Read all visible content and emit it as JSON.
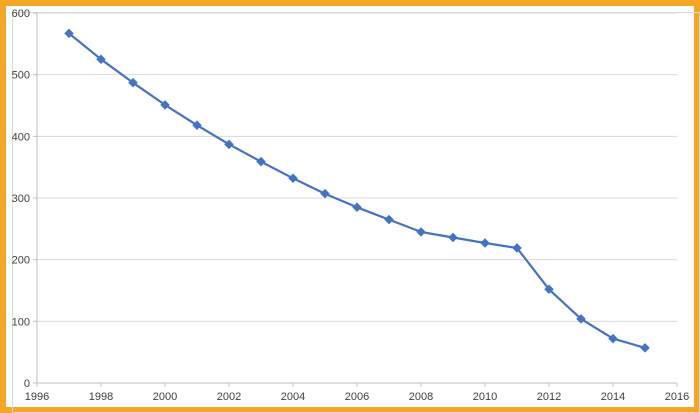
{
  "page": {
    "frame_color": "#f5a623"
  },
  "chart_data": {
    "type": "line",
    "title": "",
    "xlabel": "",
    "ylabel": "",
    "xlim": [
      1996,
      2016
    ],
    "ylim": [
      0,
      600
    ],
    "x_ticks": [
      1996,
      1998,
      2000,
      2002,
      2004,
      2006,
      2008,
      2010,
      2012,
      2014,
      2016
    ],
    "y_ticks": [
      0,
      100,
      200,
      300,
      400,
      500,
      600
    ],
    "grid": {
      "horizontal": true,
      "vertical": false,
      "color": "#d9d9d9"
    },
    "legend": "none",
    "series": [
      {
        "color": "#4472c4",
        "marker": "diamond",
        "x": [
          1997,
          1998,
          1999,
          2000,
          2001,
          2002,
          2003,
          2004,
          2005,
          2006,
          2007,
          2008,
          2009,
          2010,
          2011,
          2012,
          2013,
          2014,
          2015
        ],
        "y": [
          567,
          525,
          487,
          451,
          418,
          387,
          359,
          332,
          307,
          285,
          265,
          245,
          236,
          227,
          219,
          152,
          104,
          72,
          57
        ]
      }
    ]
  }
}
